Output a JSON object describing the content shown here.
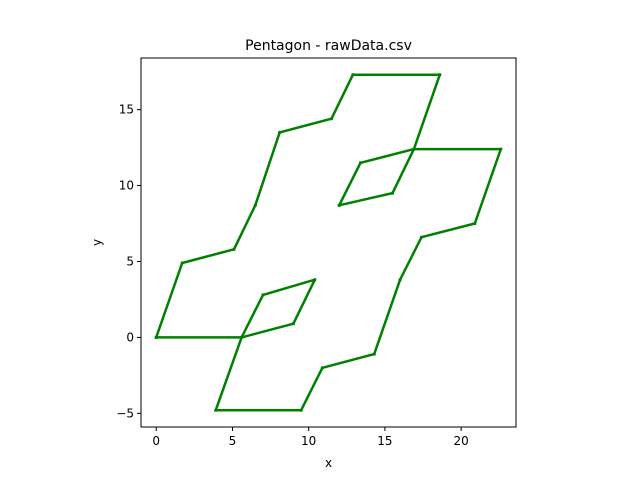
{
  "chart_data": {
    "type": "line",
    "title": "Pentagon - rawData.csv",
    "xlabel": "x",
    "ylabel": "y",
    "xlim": [
      -1.0,
      23.6
    ],
    "ylim": [
      -5.9,
      18.4
    ],
    "xticks": [
      0,
      5,
      10,
      15,
      20
    ],
    "yticks": [
      -5,
      0,
      5,
      10,
      15
    ],
    "xtick_labels": [
      "0",
      "5",
      "10",
      "15",
      "20"
    ],
    "ytick_labels": [
      "−5",
      "0",
      "5",
      "10",
      "15"
    ],
    "grid": false,
    "legend": "none",
    "line_color": "#008000",
    "series": [
      {
        "points": [
          [
            0.0,
            0.0
          ],
          [
            1.7,
            4.9
          ],
          [
            5.1,
            5.8
          ],
          [
            6.5,
            8.7
          ],
          [
            8.1,
            13.5
          ],
          [
            11.5,
            14.4
          ],
          [
            12.9,
            17.3
          ],
          [
            18.6,
            17.3
          ],
          [
            16.9,
            12.4
          ],
          [
            22.6,
            12.4
          ],
          [
            20.9,
            7.5
          ],
          [
            17.4,
            6.6
          ],
          [
            16.0,
            3.8
          ],
          [
            14.3,
            -1.1
          ],
          [
            10.9,
            -2.0
          ],
          [
            9.5,
            -4.8
          ],
          [
            3.9,
            -4.8
          ],
          [
            5.6,
            0.0
          ],
          [
            0.0,
            0.0
          ]
        ]
      },
      {
        "points": [
          [
            5.6,
            0.0
          ],
          [
            7.0,
            2.8
          ],
          [
            10.4,
            3.8
          ],
          [
            9.0,
            0.9
          ],
          [
            5.6,
            0.0
          ]
        ]
      },
      {
        "points": [
          [
            12.0,
            8.7
          ],
          [
            13.4,
            11.5
          ],
          [
            16.9,
            12.4
          ],
          [
            15.5,
            9.5
          ],
          [
            12.0,
            8.7
          ]
        ]
      }
    ]
  }
}
